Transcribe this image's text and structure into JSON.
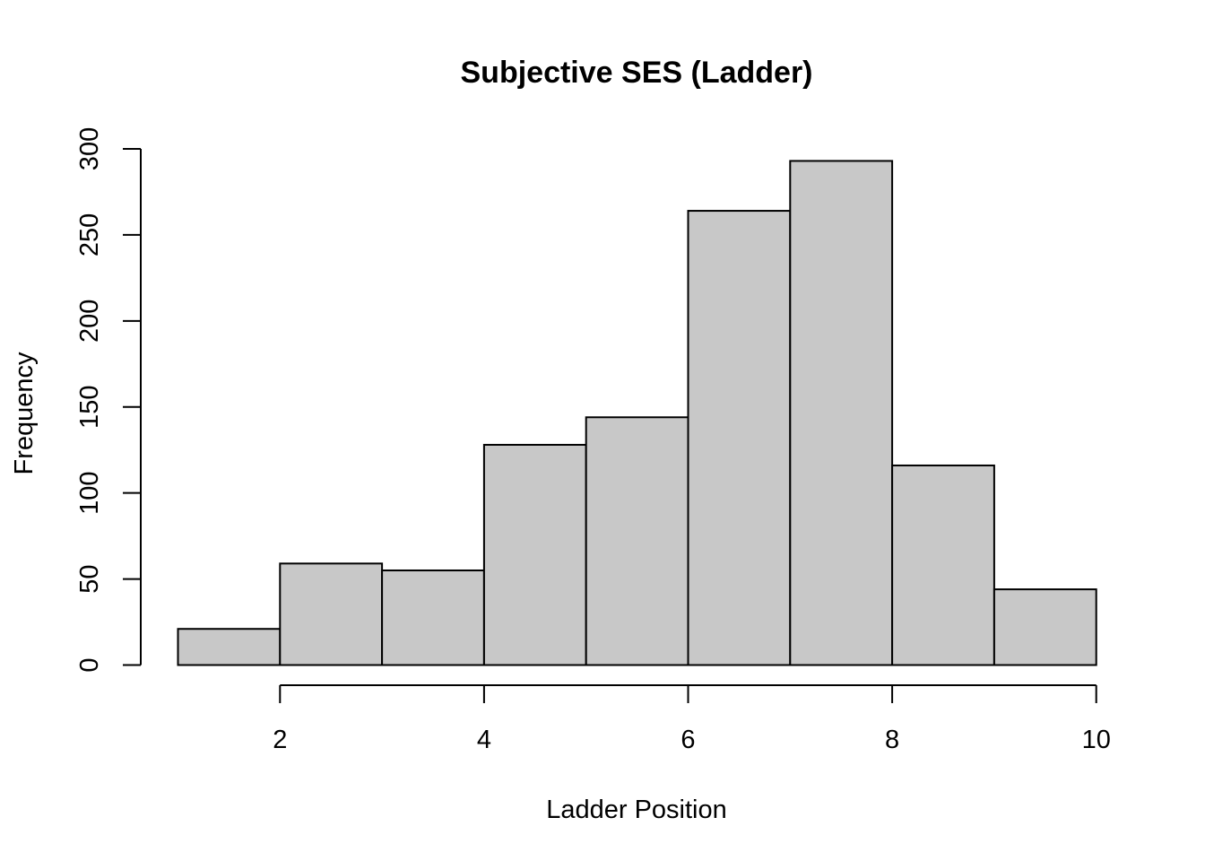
{
  "chart_data": {
    "type": "bar",
    "title": "Subjective SES (Ladder)",
    "xlabel": "Ladder Position",
    "ylabel": "Frequency",
    "bins": [
      {
        "from": 1,
        "to": 2,
        "value": 21
      },
      {
        "from": 2,
        "to": 3,
        "value": 59
      },
      {
        "from": 3,
        "to": 4,
        "value": 55
      },
      {
        "from": 4,
        "to": 5,
        "value": 128
      },
      {
        "from": 5,
        "to": 6,
        "value": 144
      },
      {
        "from": 6,
        "to": 7,
        "value": 264
      },
      {
        "from": 7,
        "to": 8,
        "value": 293
      },
      {
        "from": 8,
        "to": 9,
        "value": 116
      },
      {
        "from": 9,
        "to": 10,
        "value": 44
      }
    ],
    "xticks": [
      "2",
      "4",
      "6",
      "8",
      "10"
    ],
    "yticks": [
      "0",
      "50",
      "100",
      "150",
      "200",
      "250",
      "300"
    ],
    "xlim": [
      1,
      10
    ],
    "ylim": [
      0,
      300
    ],
    "grid": false,
    "legend": "none",
    "bar_color": "#c8c8c8",
    "edge_color": "#000000"
  }
}
